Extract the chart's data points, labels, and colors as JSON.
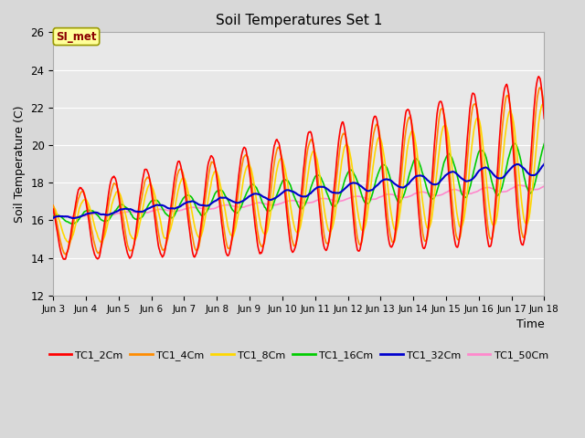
{
  "title": "Soil Temperatures Set 1",
  "xlabel": "Time",
  "ylabel": "Soil Temperature (C)",
  "ylim": [
    12,
    26
  ],
  "xlim": [
    0,
    360
  ],
  "annotation_text": "SI_met",
  "annotation_color": "#8B0000",
  "annotation_bg": "#FFFF99",
  "annotation_edge": "#999900",
  "fig_bg_color": "#D8D8D8",
  "plot_bg": "#E8E8E8",
  "line_colors": {
    "TC1_2Cm": "#FF0000",
    "TC1_4Cm": "#FF8C00",
    "TC1_8Cm": "#FFD700",
    "TC1_16Cm": "#00CC00",
    "TC1_32Cm": "#0000CD",
    "TC1_50Cm": "#FF88CC"
  },
  "xtick_labels": [
    "Jun 3",
    "Jun 4",
    "Jun 5",
    "Jun 6",
    "Jun 7",
    "Jun 8",
    "Jun 9",
    "Jun 10",
    "Jun 11",
    "Jun 12",
    "Jun 13",
    "Jun 14",
    "Jun 15",
    "Jun 16",
    "Jun 17",
    "Jun 18"
  ],
  "xtick_positions": [
    0,
    24,
    48,
    72,
    96,
    120,
    144,
    168,
    192,
    216,
    240,
    264,
    288,
    312,
    336,
    360
  ],
  "ytick_values": [
    12,
    14,
    16,
    18,
    20,
    22,
    24,
    26
  ],
  "line_width": 1.2,
  "grid_color": "#FFFFFF",
  "figsize": [
    6.4,
    4.8
  ],
  "dpi": 100
}
